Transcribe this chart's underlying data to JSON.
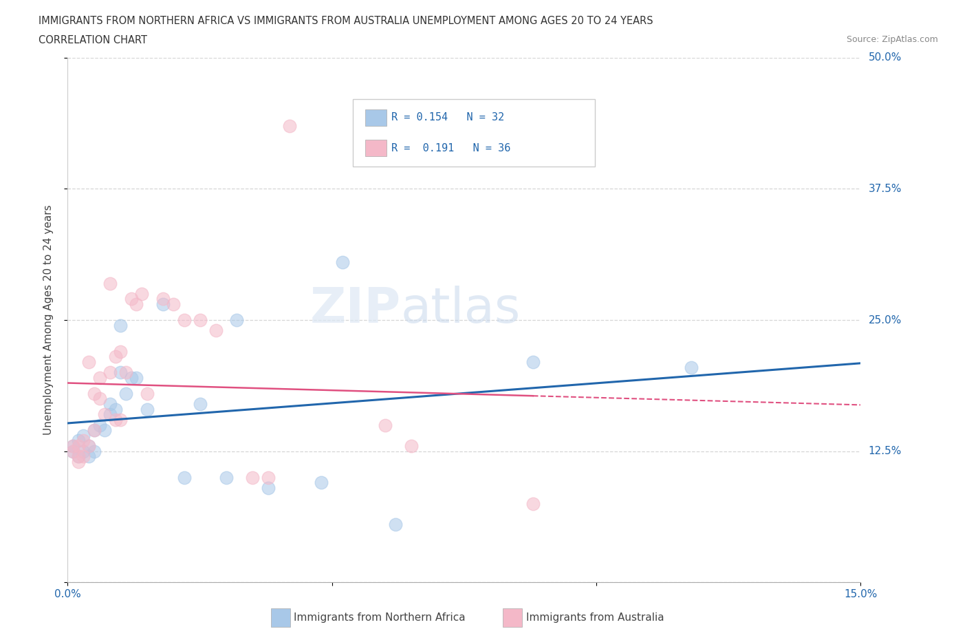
{
  "title_line1": "IMMIGRANTS FROM NORTHERN AFRICA VS IMMIGRANTS FROM AUSTRALIA UNEMPLOYMENT AMONG AGES 20 TO 24 YEARS",
  "title_line2": "CORRELATION CHART",
  "source": "Source: ZipAtlas.com",
  "ylabel": "Unemployment Among Ages 20 to 24 years",
  "xlim": [
    0.0,
    0.15
  ],
  "ylim": [
    0.0,
    0.5
  ],
  "color_blue": "#a8c8e8",
  "color_pink": "#f4b8c8",
  "color_blue_line": "#2166ac",
  "color_pink_line": "#e05080",
  "R_blue": 0.154,
  "N_blue": 32,
  "R_pink": 0.191,
  "N_pink": 36,
  "blue_x": [
    0.001,
    0.001,
    0.002,
    0.002,
    0.003,
    0.003,
    0.004,
    0.004,
    0.005,
    0.005,
    0.006,
    0.007,
    0.008,
    0.008,
    0.009,
    0.01,
    0.01,
    0.011,
    0.012,
    0.013,
    0.015,
    0.018,
    0.022,
    0.025,
    0.03,
    0.032,
    0.038,
    0.048,
    0.052,
    0.062,
    0.088,
    0.118
  ],
  "blue_y": [
    0.125,
    0.13,
    0.12,
    0.135,
    0.125,
    0.14,
    0.12,
    0.13,
    0.125,
    0.145,
    0.15,
    0.145,
    0.16,
    0.17,
    0.165,
    0.2,
    0.245,
    0.18,
    0.195,
    0.195,
    0.165,
    0.265,
    0.1,
    0.17,
    0.1,
    0.25,
    0.09,
    0.095,
    0.305,
    0.055,
    0.21,
    0.205
  ],
  "pink_x": [
    0.001,
    0.001,
    0.002,
    0.002,
    0.002,
    0.003,
    0.003,
    0.004,
    0.004,
    0.005,
    0.005,
    0.006,
    0.006,
    0.007,
    0.008,
    0.008,
    0.009,
    0.009,
    0.01,
    0.01,
    0.011,
    0.012,
    0.013,
    0.014,
    0.015,
    0.018,
    0.02,
    0.022,
    0.025,
    0.028,
    0.035,
    0.038,
    0.042,
    0.06,
    0.065,
    0.088
  ],
  "pink_y": [
    0.125,
    0.13,
    0.115,
    0.12,
    0.13,
    0.12,
    0.135,
    0.13,
    0.21,
    0.145,
    0.18,
    0.175,
    0.195,
    0.16,
    0.2,
    0.285,
    0.155,
    0.215,
    0.155,
    0.22,
    0.2,
    0.27,
    0.265,
    0.275,
    0.18,
    0.27,
    0.265,
    0.25,
    0.25,
    0.24,
    0.1,
    0.1,
    0.435,
    0.15,
    0.13,
    0.075
  ],
  "legend_entries": [
    "Immigrants from Northern Africa",
    "Immigrants from Australia"
  ],
  "watermark_part1": "ZIP",
  "watermark_part2": "atlas"
}
